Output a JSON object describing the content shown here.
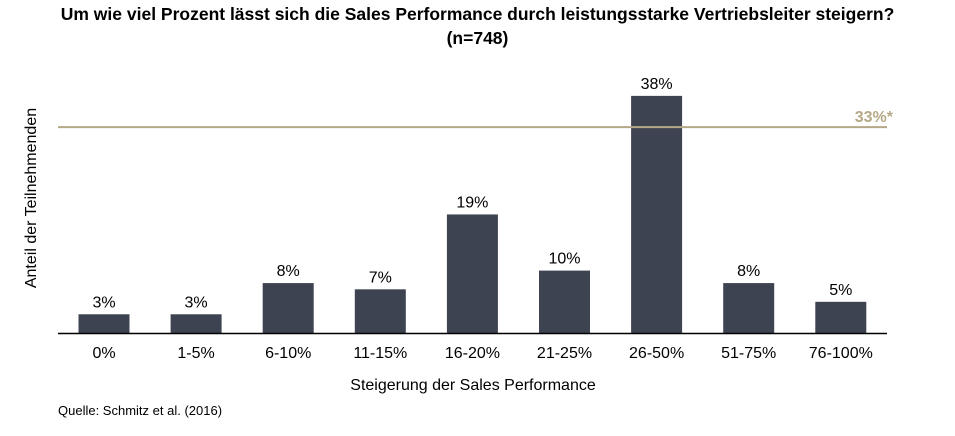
{
  "chart_data": {
    "type": "bar",
    "title": "Um wie viel Prozent lässt sich die Sales Performance durch leistungsstarke Vertriebsleiter steigern?",
    "subtitle": "(n=748)",
    "xlabel": "Steigerung der Sales Performance",
    "ylabel": "Anteil der Teilnehmenden",
    "categories": [
      "0%",
      "1-5%",
      "6-10%",
      "11-15%",
      "16-20%",
      "21-25%",
      "26-50%",
      "51-75%",
      "76-100%"
    ],
    "values": [
      3,
      3,
      8,
      7,
      19,
      10,
      38,
      8,
      5
    ],
    "data_labels": [
      "3%",
      "3%",
      "8%",
      "7%",
      "19%",
      "10%",
      "38%",
      "8%",
      "5%"
    ],
    "ylim": [
      0,
      40
    ],
    "grid": false,
    "reference_line": {
      "value": 33,
      "label": "33%*"
    },
    "colors": {
      "bar": "#3d4350",
      "reference": "#b5a887",
      "axis": "#000000"
    }
  },
  "source": "Quelle: Schmitz et al. (2016)"
}
